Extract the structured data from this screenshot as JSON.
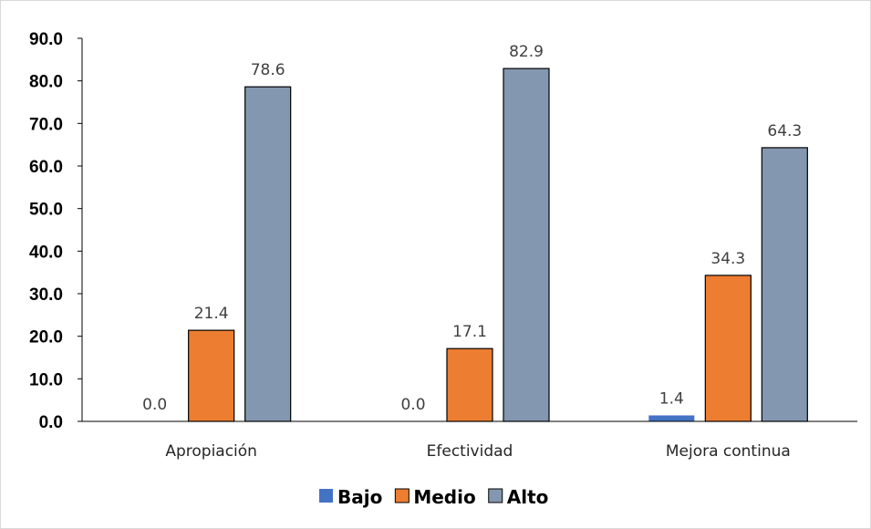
{
  "chart_data": {
    "type": "bar",
    "categories": [
      "Apropiación",
      "Efectividad",
      "Mejora continua"
    ],
    "series": [
      {
        "name": "Bajo",
        "values": [
          0.0,
          0.0,
          1.4
        ],
        "color": "#4472c4"
      },
      {
        "name": "Medio",
        "values": [
          21.4,
          17.1,
          34.3
        ],
        "color": "#ed7d31"
      },
      {
        "name": "Alto",
        "values": [
          78.6,
          82.9,
          64.3
        ],
        "color": "#8497b0"
      }
    ],
    "yticks": [
      "0.0",
      "10.0",
      "20.0",
      "30.0",
      "40.0",
      "50.0",
      "60.0",
      "70.0",
      "80.0",
      "90.0"
    ],
    "ylim": [
      0,
      90
    ],
    "title": "",
    "xlabel": "",
    "ylabel": "",
    "legend_position": "bottom",
    "grid": false,
    "data_labels": true
  }
}
